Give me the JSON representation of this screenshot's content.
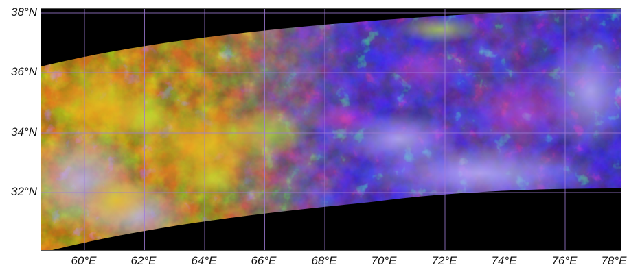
{
  "map": {
    "lat_labels": [
      "38°N",
      "36°N",
      "34°N",
      "32°N"
    ],
    "lon_labels": [
      "60°E",
      "62°E",
      "64°E",
      "66°E",
      "68°E",
      "70°E",
      "72°E",
      "74°E",
      "76°E",
      "78°E"
    ],
    "colors": {
      "background": "#000000",
      "grid": "#a07cd8",
      "desert_yellow": "#d8a820",
      "mountain_blue": "#5a3ee0",
      "snow_lavender": "#9a8ef0",
      "vegetation_green": "#9ad040",
      "ridge_magenta": "#d040c8"
    }
  }
}
